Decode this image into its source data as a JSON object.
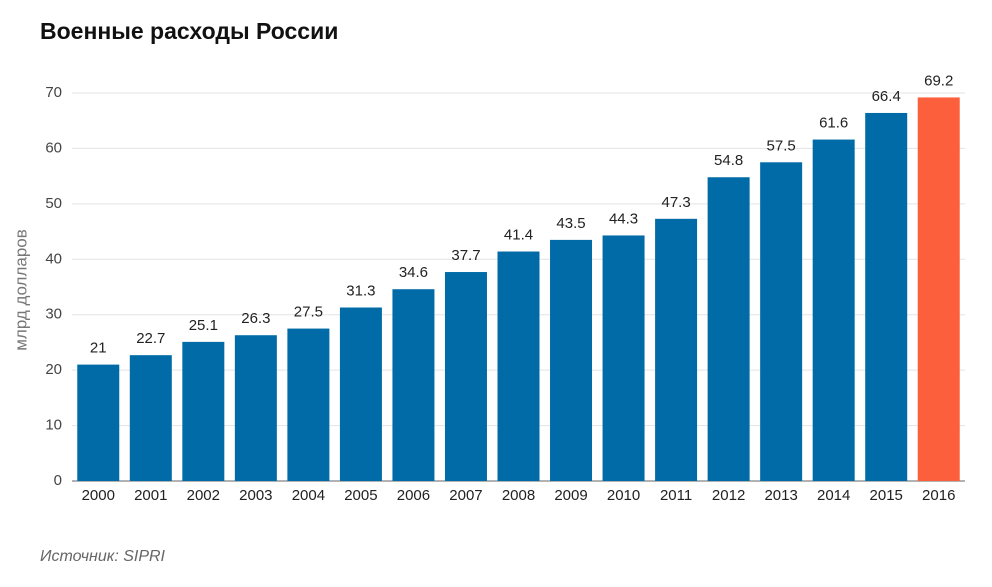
{
  "chart_data": {
    "type": "bar",
    "title": "Военные расходы России",
    "y_label": "млрд долларов",
    "source": "Источник: SIPRI",
    "categories": [
      "2000",
      "2001",
      "2002",
      "2003",
      "2004",
      "2005",
      "2006",
      "2007",
      "2008",
      "2009",
      "2010",
      "2011",
      "2012",
      "2013",
      "2014",
      "2015",
      "2016"
    ],
    "values": [
      21,
      22.7,
      25.1,
      26.3,
      27.5,
      31.3,
      34.6,
      37.7,
      41.4,
      43.5,
      44.3,
      47.3,
      54.8,
      57.5,
      61.6,
      66.4,
      69.2
    ],
    "colors": [
      "#006ba6",
      "#006ba6",
      "#006ba6",
      "#006ba6",
      "#006ba6",
      "#006ba6",
      "#006ba6",
      "#006ba6",
      "#006ba6",
      "#006ba6",
      "#006ba6",
      "#006ba6",
      "#006ba6",
      "#006ba6",
      "#006ba6",
      "#006ba6",
      "#fc5f3b"
    ],
    "ylim": [
      0,
      70
    ],
    "yticks": [
      0,
      10,
      20,
      30,
      40,
      50,
      60,
      70
    ],
    "grid": true
  }
}
